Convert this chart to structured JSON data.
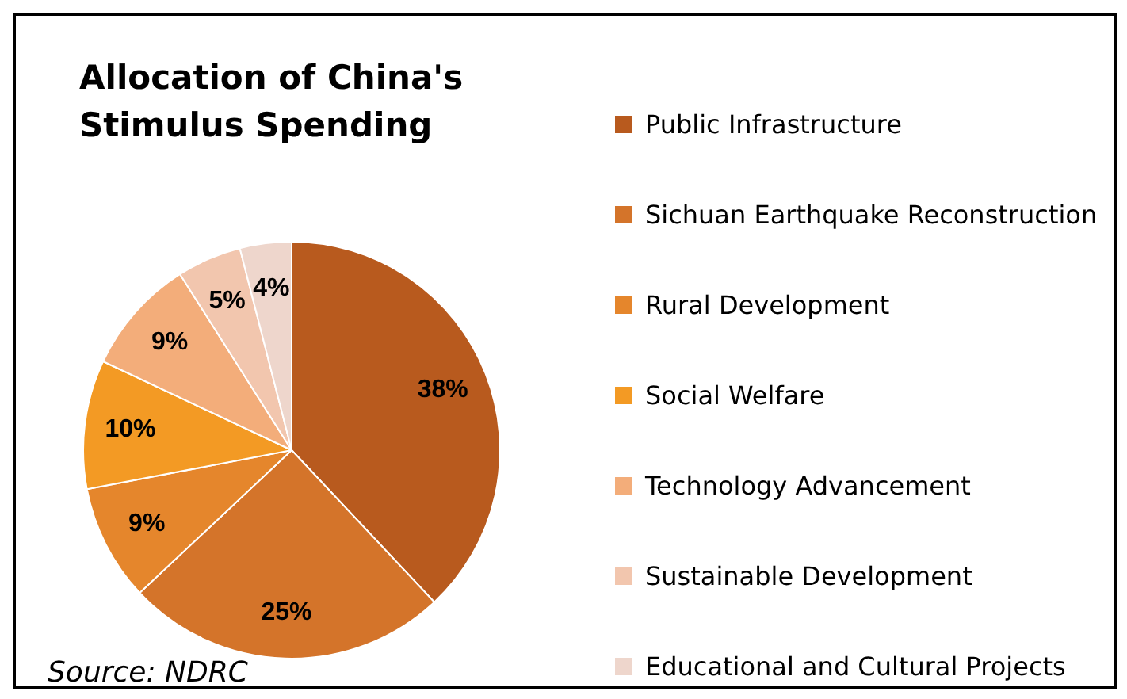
{
  "chart_data": {
    "type": "pie",
    "title": "Allocation of China's Stimulus Spending",
    "categories": [
      "Public Infrastructure",
      "Sichuan Earthquake Reconstruction",
      "Rural Development",
      "Social Welfare",
      "Technology Advancement",
      "Sustainable Development",
      "Educational and Cultural Projects"
    ],
    "values": [
      38,
      25,
      9,
      10,
      9,
      5,
      4
    ],
    "value_labels": [
      "38%",
      "25%",
      "9%",
      "10%",
      "9%",
      "5%",
      "4%"
    ],
    "colors": [
      "#b85a1e",
      "#d4742a",
      "#e5862c",
      "#f39a24",
      "#f3ad7a",
      "#f2c6ae",
      "#eed6cc"
    ],
    "legend": "right",
    "annotations": [
      "Source: NDRC"
    ]
  }
}
